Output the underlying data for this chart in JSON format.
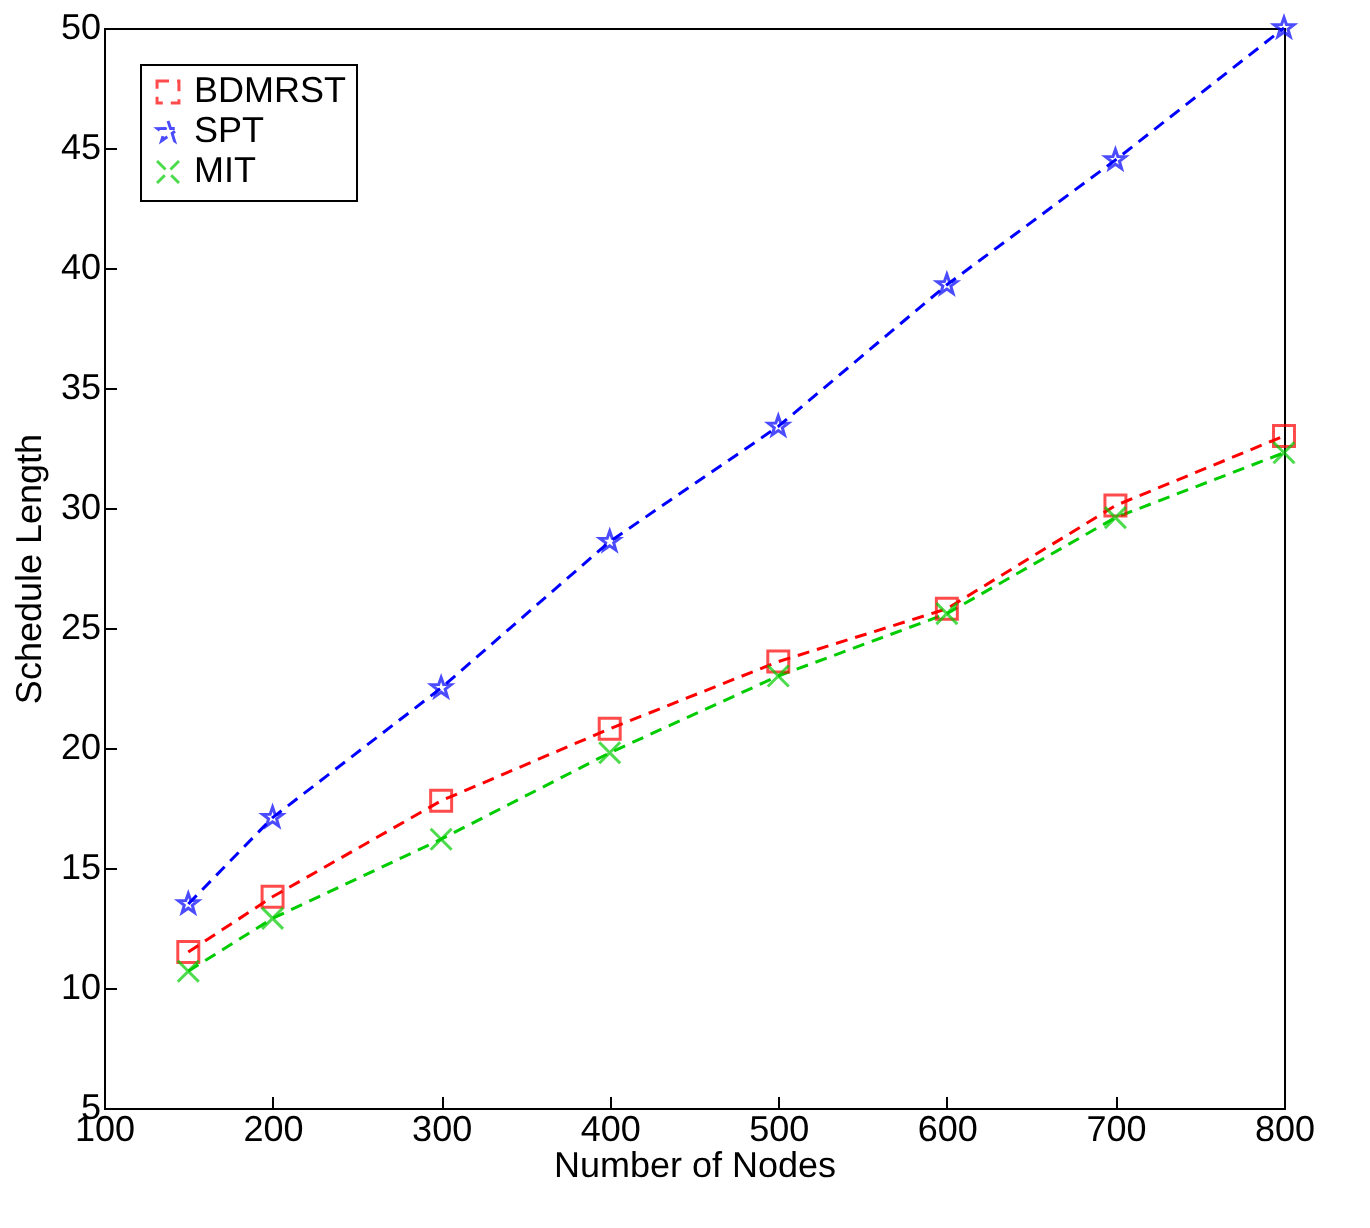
{
  "chart_data": {
    "type": "line",
    "xlabel": "Number of Nodes",
    "ylabel": "Schedule Length",
    "x": [
      150,
      200,
      300,
      400,
      500,
      600,
      700,
      800
    ],
    "series": [
      {
        "name": "BDMRST",
        "color": "#ff0000",
        "marker": "square",
        "values": [
          11.5,
          13.8,
          17.8,
          20.8,
          23.6,
          25.8,
          30.1,
          33.0
        ]
      },
      {
        "name": "SPT",
        "color": "#0000ff",
        "marker": "star",
        "values": [
          13.5,
          17.1,
          22.5,
          28.6,
          33.4,
          39.3,
          44.5,
          50.0
        ]
      },
      {
        "name": "MIT",
        "color": "#00cc00",
        "marker": "cross",
        "values": [
          10.7,
          12.9,
          16.2,
          19.8,
          23.0,
          25.6,
          29.6,
          32.3
        ]
      }
    ],
    "xlim": [
      100,
      800
    ],
    "ylim": [
      5,
      50
    ],
    "xticks": [
      100,
      200,
      300,
      400,
      500,
      600,
      700,
      800
    ],
    "yticks": [
      5,
      10,
      15,
      20,
      25,
      30,
      35,
      40,
      45,
      50
    ],
    "grid": false,
    "legend": "top left",
    "line_style": "dashed"
  }
}
